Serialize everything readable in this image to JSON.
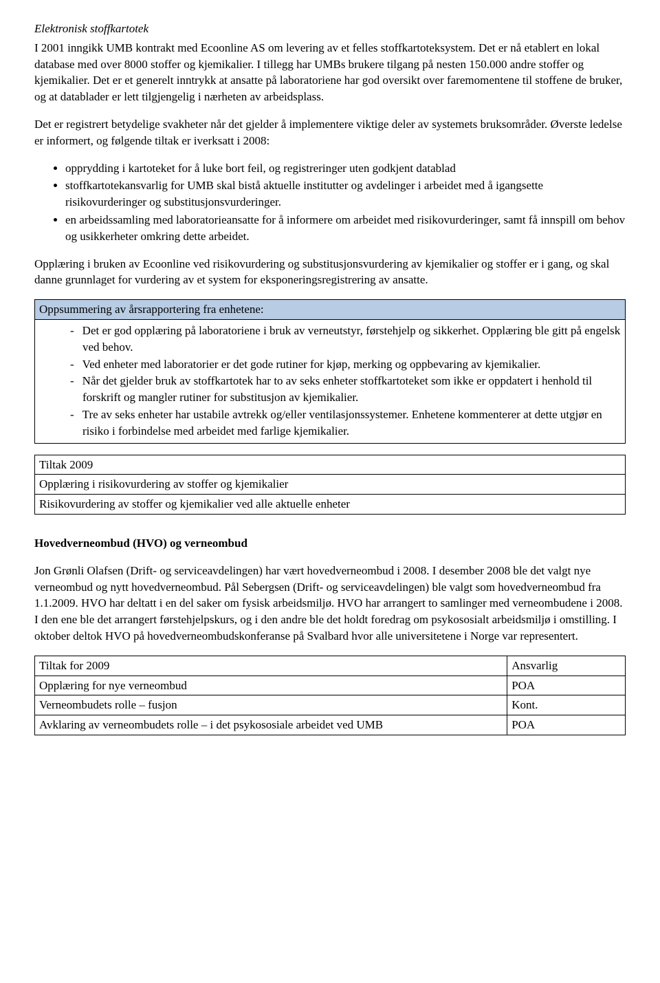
{
  "section1": {
    "title": "Elektronisk stoffkartotek",
    "para1": "I 2001 inngikk UMB kontrakt med Ecoonline AS om levering av et felles stoffkartoteksystem. Det er nå etablert en lokal database med over 8000 stoffer og kjemikalier. I tillegg har UMBs brukere tilgang på nesten 150.000 andre stoffer og kjemikalier. Det er et generelt inntrykk at ansatte på laboratoriene har god oversikt over faremomentene til stoffene de bruker, og at datablader er lett tilgjengelig i nærheten av arbeidsplass.",
    "para2": "Det er registrert betydelige svakheter når det gjelder å implementere viktige deler av systemets bruksområder. Øverste ledelse er informert, og følgende tiltak er iverksatt i 2008:",
    "bullets": [
      "opprydding i kartoteket for å luke bort feil, og registreringer uten godkjent datablad",
      "stoffkartotekansvarlig for UMB skal bistå aktuelle institutter og avdelinger i arbeidet med å igangsette risikovurderinger og substitusjonsvurderinger.",
      "en arbeidssamling med laboratorieansatte for å informere om arbeidet med risikovurderinger, samt få innspill om behov og usikkerheter omkring dette arbeidet."
    ],
    "para3": "Opplæring i bruken av Ecoonline ved risikovurdering og substitusjonsvurdering av kjemikalier og stoffer er i gang, og skal danne grunnlaget for vurdering av et system for eksponeringsregistrering av ansatte."
  },
  "summary": {
    "header": "Oppsummering av årsrapportering fra enhetene:",
    "items": [
      "Det er god opplæring på laboratoriene i bruk av verneutstyr, førstehjelp og sikkerhet. Opplæring ble gitt på engelsk ved behov.",
      "Ved enheter med laboratorier er det gode rutiner for kjøp, merking og oppbevaring av kjemikalier.",
      "Når det gjelder bruk av stoffkartotek har to av seks enheter stoffkartoteket som ikke er oppdatert i henhold til forskrift og mangler rutiner for substitusjon av kjemikalier.",
      "Tre av seks enheter har ustabile avtrekk og/eller ventilasjonssystemer. Enhetene kommenterer at dette utgjør en risiko i forbindelse med arbeidet med farlige kjemikalier."
    ]
  },
  "tiltak2009_a": {
    "rows": [
      [
        "Tiltak 2009"
      ],
      [
        "Opplæring i risikovurdering av stoffer og kjemikalier"
      ],
      [
        "Risikovurdering av stoffer og kjemikalier ved alle aktuelle enheter"
      ]
    ]
  },
  "section2": {
    "heading": "Hovedverneombud (HVO) og verneombud",
    "para1": "Jon Grønli Olafsen (Drift- og serviceavdelingen) har vært hovedverneombud i 2008. I desember 2008 ble det valgt nye verneombud og nytt hovedverneombud. Pål Sebergsen (Drift- og serviceavdelingen) ble valgt som hovedverneombud fra 1.1.2009. HVO har deltatt i en del saker om fysisk arbeidsmiljø. HVO har arrangert to samlinger med verneombudene i 2008. I den ene ble det arrangert førstehjelpskurs, og i den andre ble det holdt foredrag om psykososialt arbeidsmiljø i omstilling. I oktober deltok HVO på hovedverneombudskonferanse på Svalbard hvor alle universitetene i Norge var representert."
  },
  "tiltak2009_b": {
    "header": [
      "Tiltak for 2009",
      "Ansvarlig"
    ],
    "rows": [
      [
        "Opplæring for nye verneombud",
        "POA"
      ],
      [
        "Verneombudets rolle – fusjon",
        "Kont."
      ],
      [
        "Avklaring av verneombudets rolle – i det psykososiale arbeidet ved UMB",
        "POA"
      ]
    ]
  },
  "colors": {
    "summary_header_bg": "#b8cce4",
    "border": "#000000",
    "text": "#000000",
    "background": "#ffffff"
  }
}
